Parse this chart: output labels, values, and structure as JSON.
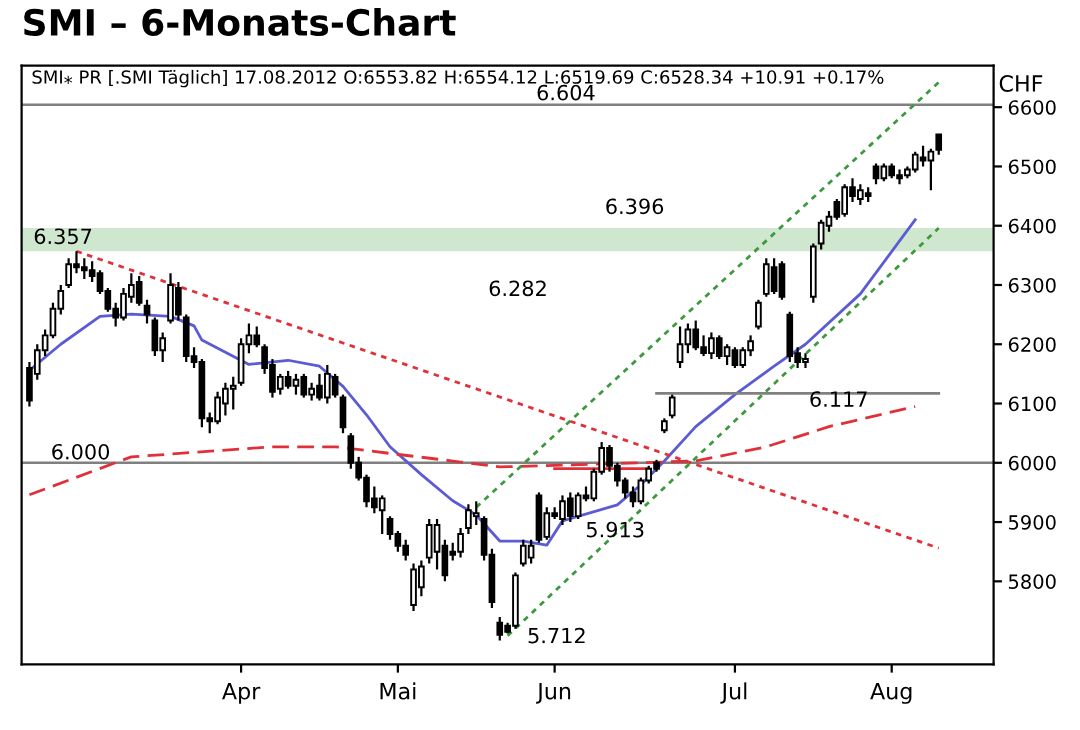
{
  "chart_data": {
    "type": "candlestick",
    "title": "SMI – 6-Monats-Chart",
    "ylabel": "CHF",
    "categories": [
      null,
      null,
      null,
      null,
      null,
      null,
      null,
      null,
      null,
      null,
      null,
      null,
      null,
      null,
      null,
      null,
      null,
      null,
      null,
      null,
      null,
      null,
      null,
      null,
      null,
      null,
      null,
      "Apr",
      null,
      null,
      null,
      null,
      null,
      null,
      null,
      null,
      null,
      null,
      null,
      null,
      null,
      null,
      null,
      null,
      null,
      null,
      null,
      "Mai",
      null,
      null,
      null,
      null,
      null,
      null,
      null,
      null,
      null,
      null,
      null,
      null,
      null,
      null,
      null,
      null,
      null,
      null,
      null,
      "Jun",
      null,
      null,
      null,
      null,
      null,
      null,
      null,
      null,
      null,
      null,
      null,
      null,
      null,
      null,
      null,
      null,
      null,
      null,
      null,
      null,
      null,
      null,
      "Jul",
      null,
      null,
      null,
      null,
      null,
      null,
      null,
      null,
      null,
      null,
      null,
      null,
      null,
      null,
      null,
      null,
      null,
      null,
      null,
      "Aug",
      null,
      null,
      null,
      null,
      null,
      null
    ],
    "ohlc": [
      [
        6160,
        6170,
        6095,
        6105
      ],
      [
        6150,
        6200,
        6140,
        6190
      ],
      [
        6190,
        6225,
        6180,
        6215
      ],
      [
        6215,
        6270,
        6210,
        6260
      ],
      [
        6260,
        6300,
        6250,
        6290
      ],
      [
        6300,
        6345,
        6295,
        6335
      ],
      [
        6335,
        6357,
        6320,
        6330
      ],
      [
        6330,
        6345,
        6310,
        6325
      ],
      [
        6325,
        6340,
        6305,
        6315
      ],
      [
        6320,
        6325,
        6285,
        6290
      ],
      [
        6290,
        6295,
        6255,
        6260
      ],
      [
        6260,
        6270,
        6230,
        6245
      ],
      [
        6245,
        6295,
        6240,
        6285
      ],
      [
        6280,
        6320,
        6270,
        6300
      ],
      [
        6305,
        6315,
        6265,
        6270
      ],
      [
        6265,
        6275,
        6235,
        6250
      ],
      [
        6240,
        6245,
        6180,
        6190
      ],
      [
        6190,
        6220,
        6170,
        6210
      ],
      [
        6240,
        6320,
        6235,
        6300
      ],
      [
        6295,
        6305,
        6240,
        6250
      ],
      [
        6245,
        6250,
        6170,
        6180
      ],
      [
        6180,
        6195,
        6160,
        6170
      ],
      [
        6170,
        6175,
        6060,
        6075
      ],
      [
        6075,
        6085,
        6050,
        6070
      ],
      [
        6070,
        6120,
        6065,
        6110
      ],
      [
        6100,
        6135,
        6080,
        6125
      ],
      [
        6125,
        6145,
        6090,
        6130
      ],
      [
        6135,
        6210,
        6130,
        6200
      ],
      [
        6200,
        6235,
        6185,
        6215
      ],
      [
        6215,
        6230,
        6195,
        6200
      ],
      [
        6195,
        6200,
        6150,
        6160
      ],
      [
        6165,
        6175,
        6110,
        6120
      ],
      [
        6125,
        6150,
        6115,
        6145
      ],
      [
        6145,
        6155,
        6125,
        6130
      ],
      [
        6130,
        6150,
        6115,
        6140
      ],
      [
        6145,
        6150,
        6110,
        6115
      ],
      [
        6115,
        6135,
        6105,
        6125
      ],
      [
        6130,
        6150,
        6105,
        6110
      ],
      [
        6110,
        6165,
        6100,
        6150
      ],
      [
        6145,
        6150,
        6110,
        6115
      ],
      [
        6110,
        6115,
        6050,
        6060
      ],
      [
        6045,
        6050,
        5990,
        6000
      ],
      [
        6000,
        6010,
        5970,
        5975
      ],
      [
        5975,
        5980,
        5925,
        5935
      ],
      [
        5940,
        5960,
        5915,
        5925
      ],
      [
        5920,
        5945,
        5880,
        5940
      ],
      [
        5905,
        5910,
        5870,
        5880
      ],
      [
        5880,
        5885,
        5850,
        5860
      ],
      [
        5860,
        5870,
        5835,
        5845
      ],
      [
        5760,
        5830,
        5750,
        5820
      ],
      [
        5790,
        5835,
        5775,
        5825
      ],
      [
        5840,
        5905,
        5830,
        5895
      ],
      [
        5850,
        5905,
        5820,
        5895
      ],
      [
        5860,
        5870,
        5800,
        5810
      ],
      [
        5850,
        5865,
        5835,
        5845
      ],
      [
        5850,
        5890,
        5840,
        5880
      ],
      [
        5890,
        5930,
        5880,
        5920
      ],
      [
        5910,
        5935,
        5895,
        5915
      ],
      [
        5905,
        5910,
        5835,
        5845
      ],
      [
        5845,
        5855,
        5755,
        5765
      ],
      [
        5730,
        5740,
        5700,
        5710
      ],
      [
        5725,
        5730,
        5712,
        5715
      ],
      [
        5725,
        5815,
        5720,
        5810
      ],
      [
        5830,
        5870,
        5825,
        5860
      ],
      [
        5840,
        5870,
        5830,
        5860
      ],
      [
        5945,
        5950,
        5865,
        5870
      ],
      [
        5875,
        5925,
        5870,
        5915
      ],
      [
        5915,
        5925,
        5905,
        5910
      ],
      [
        5905,
        5945,
        5895,
        5935
      ],
      [
        5940,
        5950,
        5900,
        5910
      ],
      [
        5910,
        5950,
        5905,
        5945
      ],
      [
        5945,
        5960,
        5935,
        5940
      ],
      [
        5940,
        5990,
        5935,
        5985
      ],
      [
        5985,
        6035,
        5980,
        6025
      ],
      [
        6025,
        6030,
        5985,
        5995
      ],
      [
        5995,
        6000,
        5960,
        5970
      ],
      [
        5970,
        5975,
        5940,
        5950
      ],
      [
        5950,
        5960,
        5925,
        5935
      ],
      [
        5935,
        5975,
        5930,
        5970
      ],
      [
        5970,
        5995,
        5965,
        5990
      ],
      [
        6000,
        6005,
        5985,
        5990
      ],
      [
        6055,
        6075,
        6050,
        6070
      ],
      [
        6080,
        6115,
        6075,
        6110
      ],
      [
        6170,
        6230,
        6160,
        6200
      ],
      [
        6200,
        6235,
        6185,
        6225
      ],
      [
        6225,
        6240,
        6190,
        6195
      ],
      [
        6195,
        6215,
        6180,
        6185
      ],
      [
        6185,
        6220,
        6175,
        6210
      ],
      [
        6210,
        6215,
        6175,
        6180
      ],
      [
        6180,
        6200,
        6165,
        6195
      ],
      [
        6190,
        6195,
        6160,
        6165
      ],
      [
        6165,
        6195,
        6160,
        6190
      ],
      [
        6190,
        6215,
        6180,
        6205
      ],
      [
        6230,
        6275,
        6225,
        6270
      ],
      [
        6285,
        6345,
        6280,
        6335
      ],
      [
        6330,
        6345,
        6285,
        6290
      ],
      [
        6335,
        6340,
        6275,
        6280
      ],
      [
        6250,
        6255,
        6170,
        6180
      ],
      [
        6185,
        6195,
        6160,
        6170
      ],
      [
        6170,
        6185,
        6160,
        6175
      ],
      [
        6280,
        6370,
        6270,
        6365
      ],
      [
        6370,
        6410,
        6360,
        6405
      ],
      [
        6400,
        6425,
        6390,
        6415
      ],
      [
        6440,
        6445,
        6410,
        6415
      ],
      [
        6420,
        6470,
        6415,
        6465
      ],
      [
        6465,
        6480,
        6440,
        6450
      ],
      [
        6445,
        6470,
        6435,
        6460
      ],
      [
        6455,
        6465,
        6440,
        6450
      ],
      [
        6500,
        6505,
        6470,
        6480
      ],
      [
        6480,
        6505,
        6475,
        6500
      ],
      [
        6500,
        6505,
        6480,
        6485
      ],
      [
        6485,
        6495,
        6470,
        6480
      ],
      [
        6485,
        6500,
        6480,
        6495
      ],
      [
        6495,
        6525,
        6490,
        6520
      ],
      [
        6515,
        6535,
        6500,
        6510
      ],
      [
        6510,
        6530,
        6460,
        6525
      ],
      [
        6553.82,
        6554.12,
        6519.69,
        6528.34
      ]
    ],
    "series": [
      {
        "type": "line",
        "color": "#5b5bd6",
        "line_style": "solid",
        "values": [
          6156,
          null,
          null,
          null,
          6200,
          null,
          null,
          null,
          null,
          6247,
          null,
          null,
          null,
          6251,
          null,
          null,
          null,
          null,
          6247,
          null,
          null,
          6231,
          6207,
          null,
          null,
          null,
          null,
          null,
          6166,
          null,
          null,
          null,
          null,
          6173,
          null,
          null,
          null,
          6163,
          null,
          null,
          6129,
          null,
          null,
          6081,
          null,
          null,
          6027,
          null,
          null,
          null,
          5980,
          null,
          null,
          null,
          5936,
          null,
          null,
          5912,
          null,
          null,
          5868,
          null,
          null,
          5868,
          null,
          null,
          5861,
          null,
          5902,
          null,
          null,
          null,
          null,
          null,
          null,
          5929,
          null,
          null,
          5963,
          null,
          null,
          6003,
          null,
          null,
          null,
          6061,
          null,
          null,
          null,
          null,
          6115,
          null,
          null,
          null,
          null,
          6163,
          null,
          null,
          null,
          6200,
          null,
          null,
          null,
          null,
          null,
          null,
          6285,
          null,
          null,
          null,
          null,
          null,
          null,
          6410,
          null,
          null,
          null
        ]
      },
      {
        "type": "line",
        "color": "#e0303a",
        "line_style": "dashed",
        "values": [
          5946,
          null,
          null,
          null,
          null,
          null,
          null,
          null,
          null,
          null,
          null,
          null,
          null,
          6010,
          null,
          null,
          null,
          null,
          null,
          null,
          null,
          null,
          null,
          null,
          null,
          null,
          null,
          null,
          null,
          null,
          null,
          6027,
          null,
          null,
          null,
          null,
          null,
          null,
          null,
          6027,
          null,
          null,
          null,
          null,
          null,
          null,
          null,
          null,
          null,
          null,
          null,
          null,
          null,
          null,
          6003,
          null,
          null,
          null,
          null,
          null,
          5993,
          null,
          null,
          null,
          null,
          null,
          null,
          null,
          null,
          null,
          null,
          null,
          null,
          null,
          null,
          null,
          null,
          null,
          null,
          null,
          null,
          null,
          null,
          null,
          null,
          6003,
          null,
          null,
          null,
          null,
          null,
          null,
          null,
          null,
          6027,
          null,
          null,
          null,
          null,
          null,
          null,
          null,
          6061,
          null,
          null,
          null,
          null,
          null,
          null,
          null,
          null,
          null,
          null,
          6095,
          null,
          null,
          null
        ]
      },
      {
        "type": "line",
        "color": "#e0303a",
        "line_style": "dotted",
        "values": [
          null,
          null,
          null,
          null,
          null,
          null,
          6357,
          null,
          null,
          null,
          null,
          null,
          null,
          null,
          null,
          null,
          null,
          null,
          null,
          null,
          null,
          null,
          null,
          null,
          null,
          null,
          null,
          null,
          null,
          null,
          null,
          null,
          null,
          null,
          null,
          null,
          null,
          null,
          null,
          null,
          null,
          null,
          null,
          null,
          null,
          null,
          null,
          null,
          null,
          null,
          null,
          null,
          null,
          null,
          null,
          null,
          null,
          null,
          null,
          null,
          null,
          null,
          null,
          null,
          null,
          null,
          null,
          null,
          null,
          null,
          null,
          null,
          null,
          null,
          null,
          null,
          null,
          null,
          null,
          null,
          null,
          null,
          null,
          null,
          null,
          null,
          null,
          null,
          null,
          null,
          null,
          null,
          null,
          null,
          null,
          null,
          null,
          null,
          null,
          null,
          null,
          null,
          null,
          null,
          null,
          null,
          null,
          null,
          null,
          null,
          null,
          null,
          null,
          null,
          null,
          null,
          5856
        ]
      },
      {
        "type": "line",
        "color": "#3c9a3c",
        "line_style": "dotted",
        "values": [
          null,
          null,
          null,
          null,
          null,
          null,
          null,
          null,
          null,
          null,
          null,
          null,
          null,
          null,
          null,
          null,
          null,
          null,
          null,
          null,
          null,
          null,
          null,
          null,
          null,
          null,
          null,
          null,
          null,
          null,
          null,
          null,
          null,
          null,
          null,
          null,
          null,
          null,
          null,
          null,
          null,
          null,
          null,
          null,
          null,
          null,
          null,
          null,
          null,
          null,
          null,
          null,
          null,
          null,
          null,
          null,
          null,
          5925,
          null,
          null,
          null,
          null,
          null,
          null,
          null,
          null,
          null,
          null,
          null,
          null,
          null,
          null,
          null,
          null,
          null,
          null,
          null,
          null,
          null,
          null,
          null,
          null,
          null,
          null,
          null,
          null,
          null,
          null,
          null,
          null,
          null,
          null,
          null,
          null,
          null,
          null,
          null,
          null,
          null,
          null,
          null,
          null,
          null,
          null,
          null,
          null,
          null,
          null,
          null,
          null,
          null,
          null,
          null,
          null,
          null,
          null,
          6642
        ]
      },
      {
        "type": "line",
        "color": "#3c9a3c",
        "line_style": "dotted",
        "values": [
          null,
          null,
          null,
          null,
          null,
          null,
          null,
          null,
          null,
          null,
          null,
          null,
          null,
          null,
          null,
          null,
          null,
          null,
          null,
          null,
          null,
          null,
          null,
          null,
          null,
          null,
          null,
          null,
          null,
          null,
          null,
          null,
          null,
          null,
          null,
          null,
          null,
          null,
          null,
          null,
          null,
          null,
          null,
          null,
          null,
          null,
          null,
          null,
          null,
          null,
          null,
          null,
          null,
          null,
          null,
          null,
          null,
          null,
          null,
          null,
          null,
          5708,
          null,
          null,
          null,
          null,
          null,
          null,
          null,
          null,
          null,
          null,
          null,
          null,
          null,
          null,
          null,
          null,
          null,
          null,
          null,
          null,
          null,
          null,
          null,
          null,
          null,
          null,
          null,
          null,
          null,
          null,
          null,
          null,
          null,
          null,
          null,
          null,
          null,
          null,
          null,
          null,
          null,
          null,
          null,
          null,
          null,
          null,
          null,
          null,
          null,
          null,
          null,
          null,
          null,
          null,
          6396
        ]
      },
      {
        "type": "line",
        "color": "#e0303a",
        "line_style": "solid",
        "values": [
          null,
          null,
          null,
          null,
          null,
          null,
          null,
          null,
          null,
          null,
          null,
          null,
          null,
          null,
          null,
          null,
          null,
          null,
          null,
          null,
          null,
          null,
          null,
          null,
          null,
          null,
          null,
          null,
          null,
          null,
          null,
          null,
          null,
          null,
          null,
          null,
          null,
          null,
          null,
          null,
          null,
          null,
          null,
          null,
          null,
          null,
          null,
          null,
          null,
          null,
          null,
          null,
          null,
          null,
          null,
          null,
          null,
          null,
          null,
          null,
          null,
          null,
          null,
          null,
          null,
          null,
          null,
          5990,
          null,
          null,
          null,
          null,
          null,
          null,
          null,
          null,
          null,
          null,
          null,
          5990,
          null,
          null,
          null,
          null,
          null,
          null,
          null,
          null,
          null,
          null,
          null,
          null,
          null,
          null,
          null,
          null,
          null,
          null,
          null,
          null,
          null,
          null,
          null,
          null,
          null,
          null,
          null,
          null,
          null,
          null,
          null,
          null,
          null,
          null,
          null,
          null,
          null
        ]
      },
      {
        "type": "line",
        "color": "#808080",
        "line_style": "solid",
        "values": [
          null,
          null,
          null,
          null,
          null,
          null,
          null,
          null,
          null,
          null,
          null,
          null,
          null,
          null,
          null,
          null,
          null,
          null,
          null,
          null,
          null,
          null,
          null,
          null,
          null,
          null,
          null,
          null,
          null,
          null,
          null,
          null,
          null,
          null,
          null,
          null,
          null,
          null,
          null,
          null,
          null,
          null,
          null,
          null,
          null,
          null,
          null,
          null,
          null,
          null,
          null,
          null,
          null,
          null,
          null,
          null,
          null,
          null,
          null,
          null,
          null,
          null,
          null,
          null,
          null,
          null,
          null,
          null,
          null,
          null,
          null,
          null,
          null,
          null,
          null,
          null,
          null,
          null,
          null,
          null,
          6117,
          null,
          null,
          null,
          null,
          null,
          null,
          null,
          null,
          null,
          null,
          null,
          null,
          null,
          null,
          null,
          null,
          null,
          null,
          null,
          null,
          null,
          null,
          null,
          null,
          null,
          null,
          null,
          null,
          null,
          null,
          null,
          null,
          null,
          null,
          null,
          6117
        ]
      }
    ],
    "ylim": [
      5660,
      6670
    ],
    "yticks": [
      5800,
      5900,
      6000,
      6100,
      6200,
      6300,
      6400,
      6500,
      6600
    ],
    "ref_lines": [
      {
        "axis": "y",
        "value": 6604,
        "color": "#808080"
      },
      {
        "axis": "y",
        "value": 6000,
        "color": "#808080"
      }
    ],
    "bands": [
      {
        "axis": "y",
        "from": 6357,
        "to": 6396,
        "color": "#cfe6cf"
      }
    ],
    "annotations": [
      "SMI⁎ PR [.SMI Täglich] 17.08.2012 O:6553.82 H:6554.12 L:6519.69 C:6528.34 +10.91 +0.17%",
      "6.604",
      "6.396",
      "6.357",
      "6.282",
      "6.117",
      "6.000",
      "5.913",
      "5.712"
    ],
    "grid": false,
    "legend": false,
    "marker": "none"
  }
}
